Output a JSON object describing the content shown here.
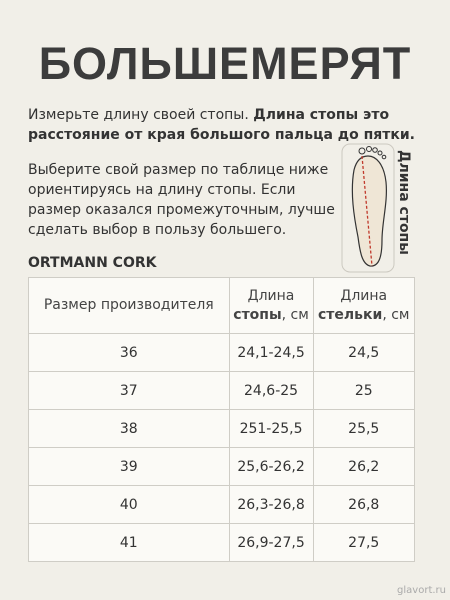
{
  "header": {
    "title": "БОЛЬШЕМЕРЯТ"
  },
  "intro": {
    "normal": "Измерьте длину своей стопы.",
    "bold": "Длина стопы это расстояние от края большого пальца до пятки."
  },
  "advice": "Выберите свой размер по таблице ниже ориентируясь на длину стопы. Если размер оказался промежуточным, лучше сделать выбор в пользу большего.",
  "foot_label": "Длина стопы",
  "brand": "ORTMANN CORK",
  "table": {
    "headers": [
      {
        "normal": "Размер производителя"
      },
      {
        "normal": "Длина",
        "bold": "стопы",
        "rest": ", см"
      },
      {
        "normal": "Длина",
        "bold": "стельки",
        "rest": ", см"
      }
    ],
    "rows": [
      [
        "36",
        "24,1-24,5",
        "24,5"
      ],
      [
        "37",
        "24,6-25",
        "25"
      ],
      [
        "38",
        "251-25,5",
        "25,5"
      ],
      [
        "39",
        "25,6-26,2",
        "26,2"
      ],
      [
        "40",
        "26,3-26,8",
        "26,8"
      ],
      [
        "41",
        "26,9-27,5",
        "27,5"
      ]
    ]
  },
  "watermark": "glavort.ru"
}
